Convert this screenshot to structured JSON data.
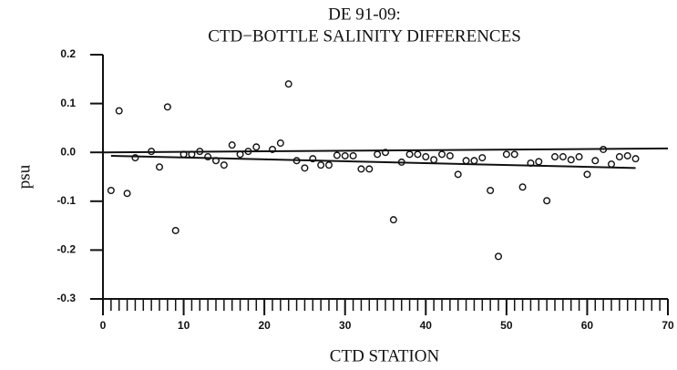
{
  "chart_data": {
    "type": "scatter",
    "title": "DE 91-09:",
    "subtitle": "CTD−BOTTLE SALINITY DIFFERENCES",
    "x_label": "CTD STATION",
    "y_label": "psu",
    "xlim": [
      0,
      70
    ],
    "ylim": [
      -0.3,
      0.2
    ],
    "xticks": [
      0,
      10,
      20,
      30,
      40,
      50,
      60,
      70
    ],
    "xminorticks": [
      0,
      1,
      2,
      3,
      4,
      5,
      6,
      7,
      8,
      9,
      10,
      11,
      12,
      13,
      14,
      15,
      16,
      17,
      18,
      19,
      20,
      21,
      22,
      23,
      24,
      25,
      26,
      27,
      28,
      29,
      30,
      31,
      32,
      33,
      34,
      35,
      36,
      37,
      38,
      39,
      40,
      41,
      42,
      43,
      44,
      45,
      46,
      47,
      48,
      49,
      50,
      51,
      52,
      53,
      54,
      55,
      56,
      57,
      58,
      59,
      60,
      61,
      62,
      63,
      64,
      65,
      66,
      67,
      68,
      69,
      70
    ],
    "yticks": [
      0.2,
      0.1,
      {
        "value": 0,
        "label": "0.0"
      },
      -0.1,
      -0.2,
      -0.3
    ],
    "color": "#111111",
    "series": [
      {
        "x": [
          1,
          2,
          3,
          4,
          6,
          7,
          8,
          9,
          10,
          11,
          12,
          13,
          14,
          15,
          16,
          17,
          18,
          19,
          21,
          22,
          23,
          24,
          25,
          26,
          27,
          28,
          29,
          30,
          31,
          32,
          33,
          34,
          35,
          36,
          37,
          38,
          39,
          40,
          41,
          42,
          43,
          44,
          45,
          46,
          47,
          48,
          49,
          50,
          51,
          52,
          53,
          54,
          55,
          56,
          57,
          58,
          59,
          60,
          61,
          62,
          63,
          64,
          65,
          66
        ],
        "values": [
          -0.078,
          0.085,
          -0.084,
          -0.011,
          0.002,
          -0.03,
          0.093,
          -0.16,
          -0.004,
          -0.004,
          0.002,
          -0.009,
          -0.017,
          -0.026,
          0.015,
          -0.004,
          0.002,
          0.011,
          0.006,
          0.019,
          0.14,
          -0.017,
          -0.032,
          -0.013,
          -0.026,
          -0.026,
          -0.006,
          -0.007,
          -0.007,
          -0.034,
          -0.034,
          -0.004,
          0,
          -0.138,
          -0.02,
          -0.004,
          -0.004,
          -0.009,
          -0.015,
          -0.004,
          -0.007,
          -0.045,
          -0.017,
          -0.017,
          -0.011,
          -0.078,
          -0.213,
          -0.004,
          -0.004,
          -0.071,
          -0.022,
          -0.019,
          -0.099,
          -0.009,
          -0.009,
          -0.015,
          -0.009,
          -0.045,
          -0.017,
          0.006,
          -0.024,
          -0.009,
          -0.007,
          -0.013
        ]
      }
    ],
    "lines": [
      {
        "x": [
          0,
          70
        ],
        "values": [
          0.0,
          0.008
        ]
      },
      {
        "x": [
          1,
          66
        ],
        "values": [
          -0.007,
          -0.032
        ]
      }
    ]
  }
}
